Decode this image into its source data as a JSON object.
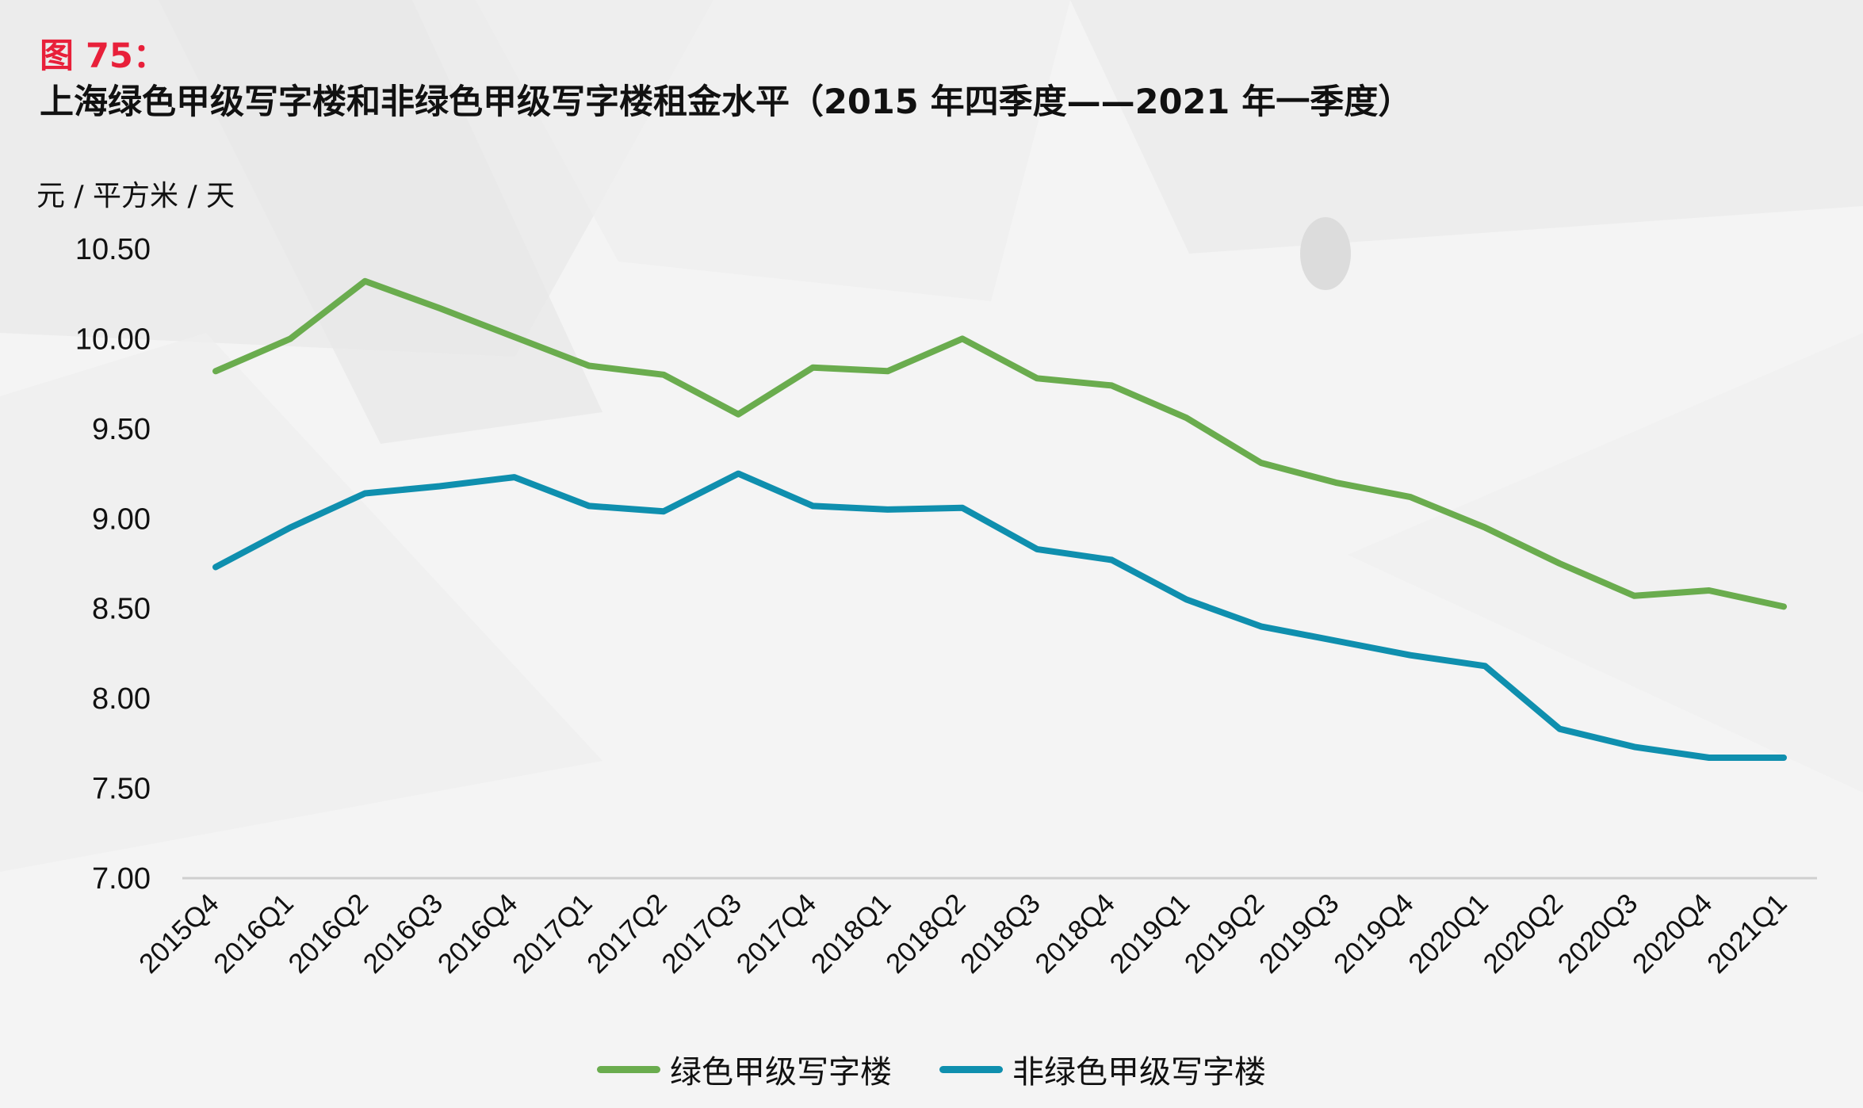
{
  "figure_label": "图 75：",
  "figure_title": "上海绿色甲级写字楼和非绿色甲级写字楼租金水平（2015 年四季度——2021 年一季度）",
  "colors": {
    "label_red": "#e8203a",
    "green_series": "#6aac4e",
    "blue_series": "#0f8fae"
  },
  "chart_data": {
    "type": "line",
    "title": "上海绿色甲级写字楼和非绿色甲级写字楼租金水平（2015 年四季度——2021 年一季度）",
    "ylabel": "元 / 平方米 / 天",
    "xlabel": "",
    "ylim": [
      7.0,
      10.5
    ],
    "yticks": [
      "10.50",
      "10.00",
      "9.50",
      "9.00",
      "8.50",
      "8.00",
      "7.50",
      "7.00"
    ],
    "grid": false,
    "legend_position": "bottom-center",
    "categories": [
      "2015Q4",
      "2016Q1",
      "2016Q2",
      "2016Q3",
      "2016Q4",
      "2017Q1",
      "2017Q2",
      "2017Q3",
      "2017Q4",
      "2018Q1",
      "2018Q2",
      "2018Q3",
      "2018Q4",
      "2019Q1",
      "2019Q2",
      "2019Q3",
      "2019Q4",
      "2020Q1",
      "2020Q2",
      "2020Q3",
      "2020Q4",
      "2021Q1"
    ],
    "series": [
      {
        "name": "绿色甲级写字楼",
        "color": "#6aac4e",
        "values": [
          9.82,
          10.0,
          10.32,
          10.17,
          10.01,
          9.85,
          9.8,
          9.58,
          9.84,
          9.82,
          10.0,
          9.78,
          9.74,
          9.56,
          9.31,
          9.2,
          9.12,
          8.95,
          8.75,
          8.57,
          8.6,
          8.51
        ]
      },
      {
        "name": "非绿色甲级写字楼",
        "color": "#0f8fae",
        "values": [
          8.73,
          8.95,
          9.14,
          9.18,
          9.23,
          9.07,
          9.04,
          9.25,
          9.07,
          9.05,
          9.06,
          8.83,
          8.77,
          8.55,
          8.4,
          8.32,
          8.24,
          8.18,
          7.83,
          7.73,
          7.67,
          7.67
        ]
      }
    ]
  }
}
